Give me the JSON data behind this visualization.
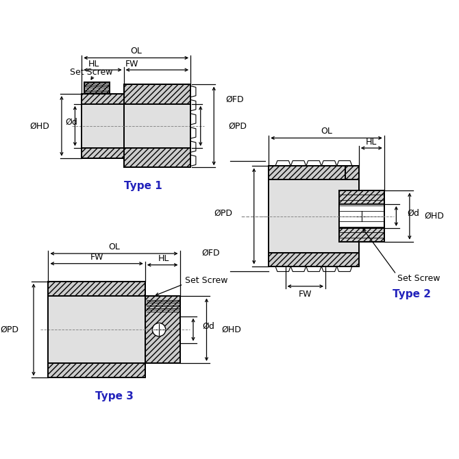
{
  "bg_color": "#ffffff",
  "type_color": "#2222bb",
  "hatch_fc": "#cccccc",
  "bore_fc": "#e0e0e0",
  "type1_label": "Type 1",
  "type2_label": "Type 2",
  "type3_label": "Type 3",
  "lw_thick": 1.4,
  "lw_dim": 0.9,
  "lw_thin": 0.6,
  "fontsize_label": 9,
  "fontsize_type": 11
}
